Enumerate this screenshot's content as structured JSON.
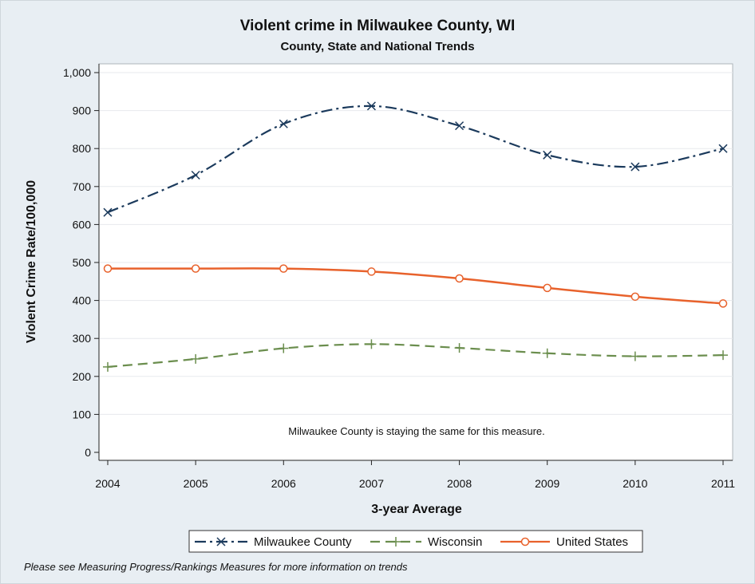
{
  "chart_data": {
    "type": "line",
    "title": "Violent crime in Milwaukee County, WI",
    "subtitle": "County, State and National Trends",
    "xlabel": "3-year Average",
    "ylabel": "Violent Crime Rate/100,000",
    "x": [
      "2004",
      "2005",
      "2006",
      "2007",
      "2008",
      "2009",
      "2010",
      "2011"
    ],
    "ylim": [
      0,
      1000
    ],
    "yticks": [
      0,
      100,
      200,
      300,
      400,
      500,
      600,
      700,
      800,
      900,
      1000
    ],
    "ytick_labels": [
      "0",
      "100",
      "200",
      "300",
      "400",
      "500",
      "600",
      "700",
      "800",
      "900",
      "1,000"
    ],
    "grid": true,
    "legend_position": "bottom",
    "series": [
      {
        "name": "Milwaukee County",
        "values": [
          632,
          730,
          865,
          912,
          860,
          783,
          752,
          800
        ],
        "color": "#1b3a5c",
        "marker": "x",
        "dash": "dash-dot"
      },
      {
        "name": "Wisconsin",
        "values": [
          225,
          246,
          274,
          285,
          275,
          261,
          253,
          256
        ],
        "color": "#6b8e4e",
        "marker": "plus",
        "dash": "dash"
      },
      {
        "name": "United States",
        "values": [
          484,
          484,
          484,
          476,
          458,
          433,
          410,
          392
        ],
        "color": "#e8622c",
        "marker": "circle",
        "dash": "solid"
      }
    ],
    "annotation": "Milwaukee County is staying the same for this measure."
  },
  "footnote": "Please see Measuring Progress/Rankings Measures for more information on trends"
}
